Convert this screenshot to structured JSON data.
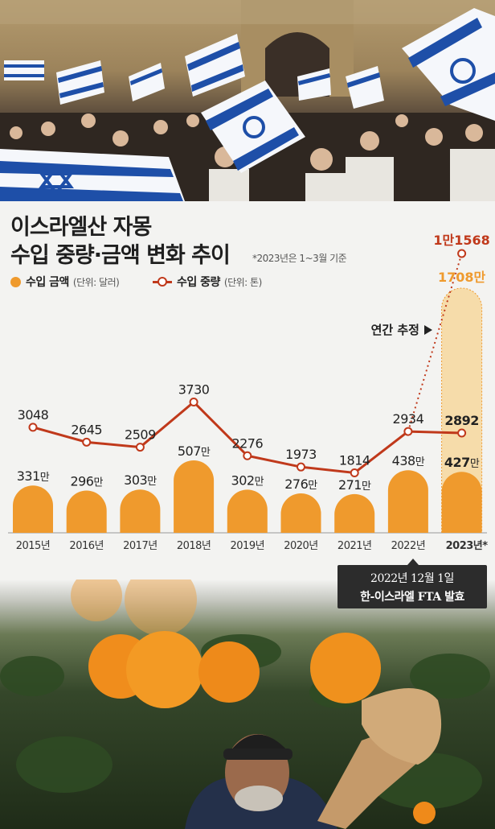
{
  "header": {
    "title_line1": "이스라엘산 자몽",
    "title_line2": "수입 중량·금액 변화 추이",
    "note": "*2023년은 1~3월 기준"
  },
  "legend": {
    "amount_label": "수입 금액",
    "amount_unit": "(단위: 달러)",
    "weight_label": "수입 중량",
    "weight_unit": "(단위: 톤)"
  },
  "annotations": {
    "annual_estimate": "연간 추정",
    "fta_line1": "2022년 12월 1일",
    "fta_line2": "한-이스라엘 FTA 발효"
  },
  "colors": {
    "bar": "#ef9a2d",
    "line": "#c0391b",
    "estimate_fill": "#f6dcaa"
  },
  "chart_data": {
    "type": "bar",
    "categories": [
      "2015년",
      "2016년",
      "2017년",
      "2018년",
      "2019년",
      "2020년",
      "2021년",
      "2022년",
      "2023년*"
    ],
    "series": [
      {
        "name": "수입 금액",
        "type": "bar",
        "values": [
          3310000,
          2960000,
          3030000,
          5070000,
          3020000,
          2760000,
          2710000,
          4380000,
          4270000
        ],
        "labels": [
          "331만",
          "296만",
          "303만",
          "507만",
          "302만",
          "276만",
          "271만",
          "438만",
          "427만"
        ]
      },
      {
        "name": "수입 중량",
        "type": "line",
        "values": [
          3048,
          2645,
          2509,
          3730,
          2276,
          1973,
          1814,
          2934,
          2892
        ],
        "labels": [
          "3048",
          "2645",
          "2509",
          "3730",
          "2276",
          "1973",
          "1814",
          "2934",
          "2892"
        ]
      }
    ],
    "estimate_2023": {
      "amount": 17080000,
      "amount_label": "1708만",
      "weight": 11568,
      "weight_label": "1만1568"
    }
  }
}
